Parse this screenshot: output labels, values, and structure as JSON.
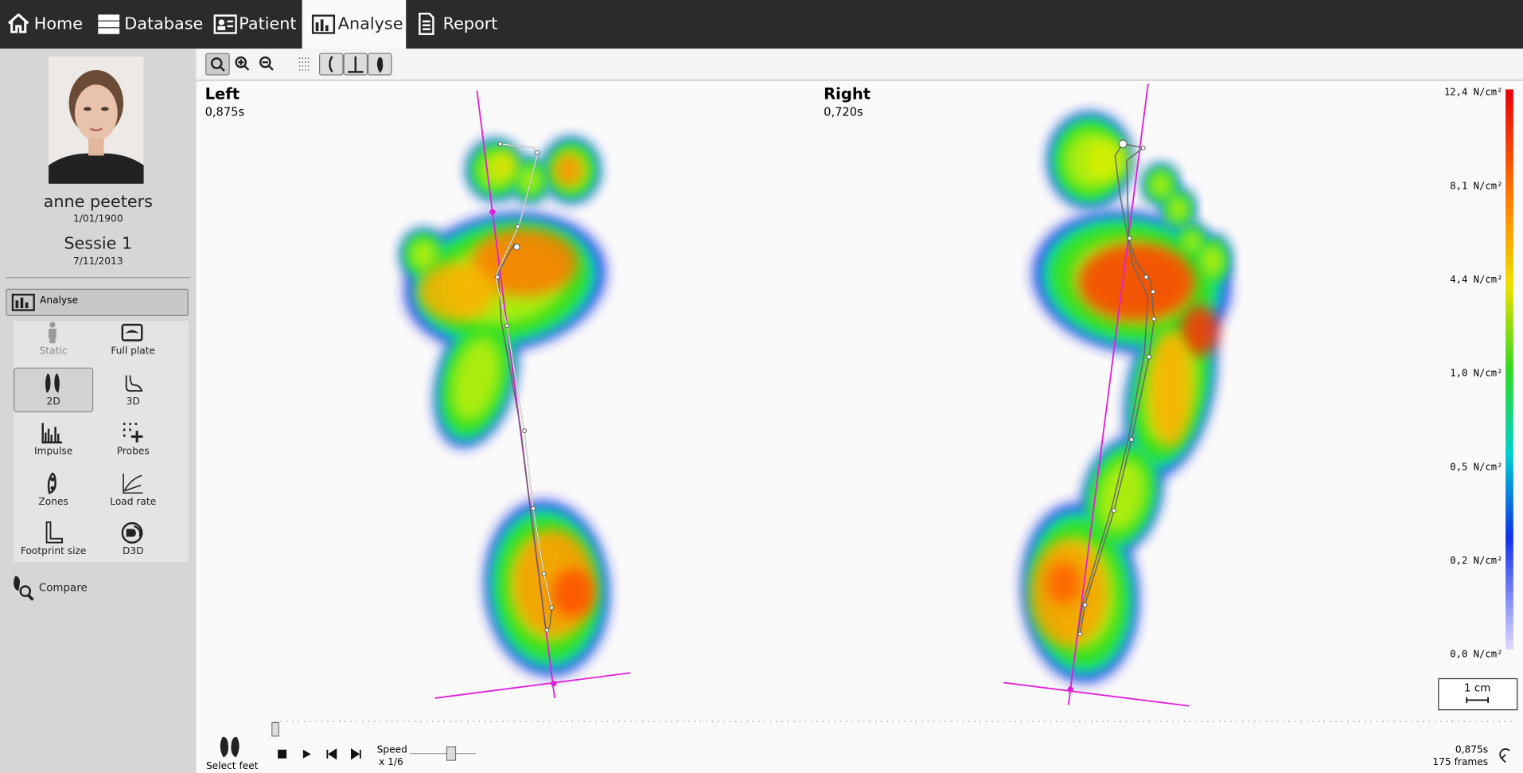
{
  "nav": {
    "tabs": [
      "Home",
      "Database",
      "Patient",
      "Analyse",
      "Report"
    ]
  },
  "patient": {
    "name": "anne peeters",
    "birth_date": "1/01/1900",
    "session": "Sessie 1",
    "session_date": "7/11/2013"
  },
  "sidebar": {
    "section": "Analyse",
    "tools": [
      "Static",
      "Full plate",
      "2D",
      "3D",
      "Impulse",
      "Probes",
      "Zones",
      "Load rate",
      "Footprint size",
      "D3D"
    ],
    "compare": "Compare"
  },
  "view": {
    "left": {
      "label": "Left",
      "time": "0,875s"
    },
    "right": {
      "label": "Right",
      "time": "0,720s"
    }
  },
  "legend": {
    "labels": [
      "12,4 N/cm²",
      "8,1 N/cm²",
      "4,4 N/cm²",
      "1,0 N/cm²",
      "0,5 N/cm²",
      "0,2 N/cm²",
      "0,0 N/cm²"
    ]
  },
  "scale_bar": "1 cm",
  "playback": {
    "select_feet": "Select feet",
    "speed_label": "Speed",
    "speed_value": "x 1/6",
    "time": "0,875s",
    "frames": "175 frames"
  }
}
